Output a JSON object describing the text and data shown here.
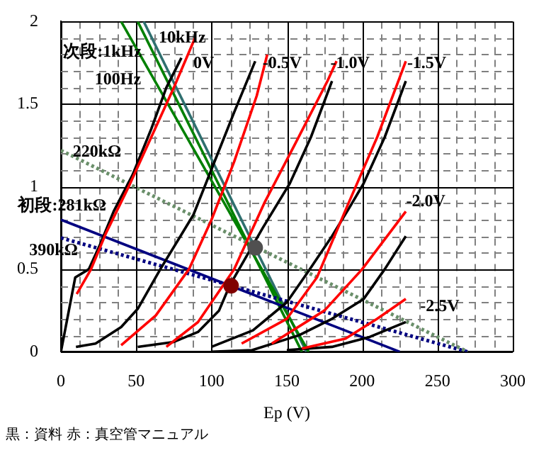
{
  "chart_data": {
    "type": "line",
    "xlabel": "Ep (V)",
    "xlim": [
      0,
      300
    ],
    "ylim": [
      0,
      2
    ],
    "xticks": [
      0,
      {
        "value": 12.5,
        "label": null
      },
      {
        "value": 25,
        "label": null
      },
      {
        "value": 37.5,
        "label": null
      },
      50,
      {
        "value": 62.5,
        "label": null
      },
      {
        "value": 75,
        "label": null
      },
      {
        "value": 87.5,
        "label": null
      },
      100,
      {
        "value": 112.5,
        "label": null
      },
      {
        "value": 125,
        "label": null
      },
      {
        "value": 137.5,
        "label": null
      },
      150,
      {
        "value": 162.5,
        "label": null
      },
      {
        "value": 175,
        "label": null
      },
      {
        "value": 187.5,
        "label": null
      },
      200,
      {
        "value": 212.5,
        "label": null
      },
      {
        "value": 225,
        "label": null
      },
      {
        "value": 237.5,
        "label": null
      },
      250,
      {
        "value": 262.5,
        "label": null
      },
      {
        "value": 275,
        "label": null
      },
      {
        "value": 287.5,
        "label": null
      },
      300
    ],
    "yticks": [
      0,
      {
        "value": 0.1,
        "label": null
      },
      {
        "value": 0.2,
        "label": null
      },
      {
        "value": 0.3,
        "label": null
      },
      {
        "value": 0.4,
        "label": null
      },
      0.5,
      {
        "value": 0.6,
        "label": null
      },
      {
        "value": 0.7,
        "label": null
      },
      {
        "value": 0.8,
        "label": null
      },
      {
        "value": 0.9,
        "label": null
      },
      1,
      {
        "value": 1.1,
        "label": null
      },
      {
        "value": 1.2,
        "label": null
      },
      {
        "value": 1.3,
        "label": null
      },
      {
        "value": 1.4,
        "label": null
      },
      1.5,
      {
        "value": 1.6,
        "label": null
      },
      {
        "value": 1.7,
        "label": null
      },
      {
        "value": 1.8,
        "label": null
      },
      {
        "value": 1.9,
        "label": null
      },
      2
    ],
    "grid": true,
    "legend": false,
    "marker": "none",
    "series": [
      {
        "color": "#ff0000",
        "x": [
          10.5,
          20,
          30,
          45,
          60,
          75,
          89
        ],
        "values": [
          0.35,
          0.5,
          0.72,
          1.0,
          1.3,
          1.6,
          1.9
        ]
      },
      {
        "color": "#ff0000",
        "x": [
          40,
          63,
          85,
          100,
          115,
          130,
          137
        ],
        "values": [
          0.04,
          0.22,
          0.5,
          0.8,
          1.15,
          1.55,
          1.8
        ]
      },
      {
        "color": "#ff0000",
        "x": [
          70,
          91,
          115,
          135,
          155,
          177,
          183
        ],
        "values": [
          0.03,
          0.18,
          0.5,
          0.9,
          1.25,
          1.64,
          1.76
        ]
      },
      {
        "color": "#ff0000",
        "x": [
          120,
          150,
          170,
          190,
          210,
          229
        ],
        "values": [
          0.05,
          0.2,
          0.45,
          0.88,
          1.3,
          1.76
        ]
      },
      {
        "color": "#ff0000",
        "x": [
          140,
          175,
          200,
          229
        ],
        "values": [
          0.05,
          0.25,
          0.5,
          0.85
        ]
      },
      {
        "color": "#ff0000",
        "x": [
          160,
          189,
          210,
          229
        ],
        "values": [
          0.02,
          0.08,
          0.2,
          0.32
        ]
      },
      {
        "color": "#000000",
        "x": [
          0,
          9.5,
          18.5,
          26,
          35,
          47.5,
          60,
          70,
          80
        ],
        "values": [
          0,
          0.45,
          0.5,
          0.65,
          0.85,
          1.07,
          1.35,
          1.6,
          1.78
        ]
      },
      {
        "color": "#000000",
        "x": [
          10,
          23,
          40,
          51,
          66,
          88,
          101.5,
          115,
          129
        ],
        "values": [
          0.03,
          0.05,
          0.15,
          0.26,
          0.5,
          0.83,
          1.14,
          1.45,
          1.76
        ]
      },
      {
        "color": "#000000",
        "x": [
          51,
          75,
          91,
          105,
          112,
          134,
          152,
          166,
          180
        ],
        "values": [
          0.03,
          0.06,
          0.12,
          0.25,
          0.4,
          0.75,
          1.02,
          1.3,
          1.64
        ]
      },
      {
        "color": "#000000",
        "x": [
          100,
          127.5,
          150,
          164.5,
          180,
          192,
          201,
          215,
          229
        ],
        "values": [
          0.03,
          0.13,
          0.3,
          0.49,
          0.7,
          0.88,
          1.02,
          1.3,
          1.64
        ]
      },
      {
        "color": "#000000",
        "x": [
          100,
          127,
          158,
          180,
          201,
          215,
          229
        ],
        "values": [
          0,
          0.01,
          0.1,
          0.2,
          0.32,
          0.5,
          0.7
        ]
      },
      {
        "color": "#000000",
        "x": [
          150,
          180,
          205,
          229
        ],
        "values": [
          0.01,
          0.03,
          0.09,
          0.18
        ]
      },
      {
        "color": "#6a8f6a",
        "line_style": "dotted",
        "x": [
          0,
          270
        ],
        "values": [
          1.22,
          0
        ]
      },
      {
        "color": "#000080",
        "line_style": "dotted",
        "x": [
          0,
          270
        ],
        "values": [
          0.69,
          0
        ]
      },
      {
        "color": "#000080",
        "x": [
          0,
          225
        ],
        "values": [
          0.8,
          0
        ]
      },
      {
        "color": "#008000",
        "x": [
          40,
          164.5
        ],
        "values": [
          2,
          0
        ]
      },
      {
        "color": "#2f6f6f",
        "x": [
          55,
          163
        ],
        "values": [
          2,
          0
        ]
      },
      {
        "color": "#008000",
        "x": [
          51,
          160
        ],
        "values": [
          2,
          0
        ]
      },
      {
        "type": "scatter",
        "marker": "circle",
        "color": "#800000",
        "x": [
          113
        ],
        "values": [
          0.4
        ]
      },
      {
        "type": "scatter",
        "marker": "circle",
        "color": "#505050",
        "x": [
          129
        ],
        "values": [
          0.63
        ]
      }
    ],
    "annotations": [
      {
        "text": "10kHz",
        "x": 63,
        "y": 1.9
      },
      "次段:1kHz",
      "100Hz",
      {
        "text": "0V",
        "x": 86,
        "y": 1.745
      },
      {
        "text": "-0.5V",
        "x": 132,
        "y": 1.745
      },
      {
        "text": "-1.0V",
        "x": 177,
        "y": 1.745
      },
      {
        "text": "-1.5V",
        "x": 228,
        "y": 1.745
      },
      "-2.0V",
      "-2.5V",
      {
        "text": "220kΩ",
        "x": 6,
        "y": 1.21
      },
      "初段:281kΩ",
      "390kΩ",
      "黒：資料 赤：真空管マニュアル"
    ]
  }
}
